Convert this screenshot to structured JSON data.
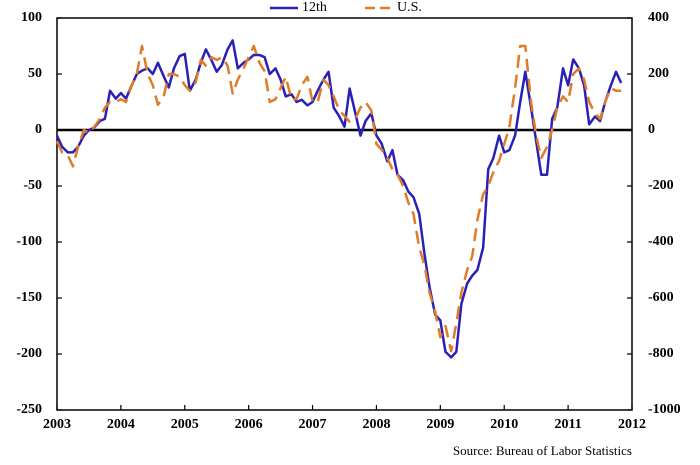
{
  "chart_data": {
    "type": "line",
    "x": [
      2003.0,
      2003.08,
      2003.17,
      2003.25,
      2003.33,
      2003.42,
      2003.5,
      2003.58,
      2003.67,
      2003.75,
      2003.83,
      2003.92,
      2004.0,
      2004.08,
      2004.17,
      2004.25,
      2004.33,
      2004.42,
      2004.5,
      2004.58,
      2004.67,
      2004.75,
      2004.83,
      2004.92,
      2005.0,
      2005.08,
      2005.17,
      2005.25,
      2005.33,
      2005.42,
      2005.5,
      2005.58,
      2005.67,
      2005.75,
      2005.83,
      2005.92,
      2006.0,
      2006.08,
      2006.17,
      2006.25,
      2006.33,
      2006.42,
      2006.5,
      2006.58,
      2006.67,
      2006.75,
      2006.83,
      2006.92,
      2007.0,
      2007.08,
      2007.17,
      2007.25,
      2007.33,
      2007.42,
      2007.5,
      2007.58,
      2007.67,
      2007.75,
      2007.83,
      2007.92,
      2008.0,
      2008.08,
      2008.17,
      2008.25,
      2008.33,
      2008.42,
      2008.5,
      2008.58,
      2008.67,
      2008.75,
      2008.83,
      2008.92,
      2009.0,
      2009.08,
      2009.17,
      2009.25,
      2009.33,
      2009.42,
      2009.5,
      2009.58,
      2009.67,
      2009.75,
      2009.83,
      2009.92,
      2010.0,
      2010.08,
      2010.17,
      2010.25,
      2010.33,
      2010.42,
      2010.5,
      2010.58,
      2010.67,
      2010.75,
      2010.83,
      2010.92,
      2011.0,
      2011.08,
      2011.17,
      2011.25,
      2011.33,
      2011.42,
      2011.5,
      2011.58,
      2011.67,
      2011.75,
      2011.83
    ],
    "series": [
      {
        "name": "12th",
        "color": "#2a20b5",
        "axis": "y",
        "values": [
          -5,
          -15,
          -20,
          -20,
          -15,
          -5,
          0,
          2,
          8,
          10,
          35,
          28,
          33,
          28,
          40,
          50,
          53,
          55,
          50,
          60,
          48,
          38,
          55,
          66,
          68,
          35,
          45,
          60,
          72,
          62,
          52,
          58,
          72,
          80,
          55,
          60,
          63,
          67,
          67,
          65,
          50,
          55,
          45,
          30,
          32,
          25,
          27,
          22,
          25,
          35,
          45,
          52,
          20,
          12,
          3,
          37,
          15,
          -5,
          8,
          15,
          -5,
          -12,
          -28,
          -18,
          -40,
          -45,
          -55,
          -60,
          -75,
          -110,
          -140,
          -165,
          -170,
          -198,
          -203,
          -198,
          -155,
          -137,
          -130,
          -125,
          -105,
          -35,
          -25,
          -5,
          -20,
          -18,
          -5,
          25,
          52,
          20,
          -10,
          -40,
          -40,
          10,
          20,
          55,
          40,
          63,
          55,
          40,
          5,
          12,
          8,
          25,
          40,
          52,
          42
        ]
      },
      {
        "name": "U.S.",
        "color": "#e07b28",
        "axis": "y2",
        "dashed": true,
        "values": [
          -40,
          -80,
          -90,
          -130,
          -60,
          0,
          -10,
          10,
          40,
          80,
          100,
          100,
          110,
          100,
          160,
          200,
          300,
          200,
          160,
          90,
          120,
          200,
          200,
          190,
          160,
          140,
          170,
          250,
          230,
          260,
          250,
          260,
          230,
          130,
          180,
          220,
          260,
          300,
          240,
          210,
          100,
          110,
          150,
          190,
          110,
          110,
          160,
          190,
          100,
          100,
          180,
          160,
          120,
          70,
          50,
          30,
          40,
          80,
          100,
          70,
          -50,
          -70,
          -100,
          -140,
          -160,
          -200,
          -260,
          -300,
          -420,
          -480,
          -580,
          -650,
          -740,
          -700,
          -790,
          -690,
          -580,
          -500,
          -450,
          -320,
          -230,
          -200,
          -150,
          -110,
          -50,
          10,
          150,
          300,
          300,
          100,
          -20,
          -100,
          -60,
          0,
          80,
          120,
          100,
          200,
          220,
          180,
          100,
          60,
          40,
          100,
          150,
          140,
          140
        ]
      }
    ],
    "xlim": [
      2003,
      2012
    ],
    "xticks": [
      2003,
      2004,
      2005,
      2006,
      2007,
      2008,
      2009,
      2010,
      2011,
      2012
    ],
    "ylim": [
      -250,
      100
    ],
    "yticks": [
      -250,
      -200,
      -150,
      -100,
      -50,
      0,
      50,
      100
    ],
    "y2lim": [
      -1000,
      400
    ],
    "y2ticks": [
      -1000,
      -800,
      -600,
      -400,
      -200,
      0,
      200,
      400
    ],
    "zero_line": true,
    "legend": "top-center",
    "annotation": "Source: Bureau of Labor Statistics"
  }
}
